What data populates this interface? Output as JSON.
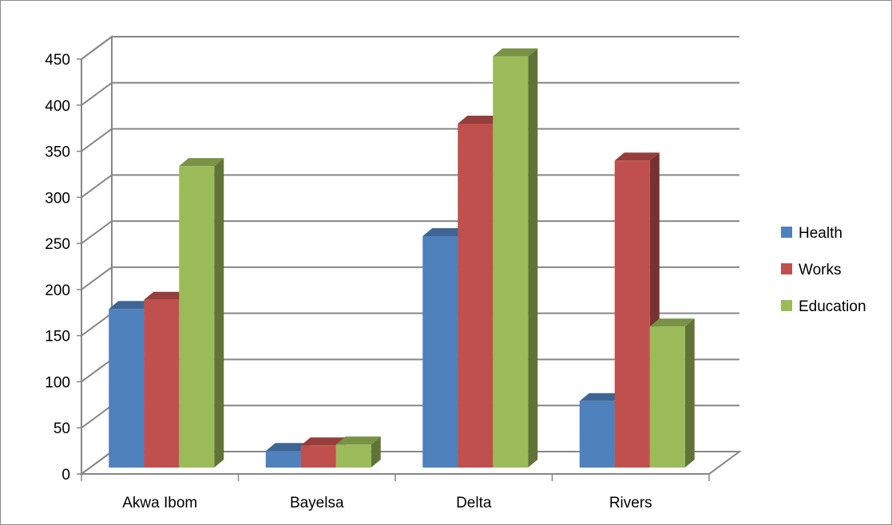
{
  "chart_data": {
    "type": "bar",
    "variant": "3d-clustered-column",
    "categories": [
      "Akwa Ibom",
      "Bayelsa",
      "Delta",
      "Rivers"
    ],
    "series": [
      {
        "name": "Health",
        "values": [
          172,
          18,
          251,
          72
        ],
        "color": "#4F81BD"
      },
      {
        "name": "Works",
        "values": [
          182,
          24,
          373,
          333
        ],
        "color": "#C0504D"
      },
      {
        "name": "Education",
        "values": [
          327,
          25,
          446,
          153
        ],
        "color": "#9BBB59"
      }
    ],
    "title": "",
    "xlabel": "",
    "ylabel": "",
    "ylim": [
      0,
      450
    ],
    "yticks": [
      0,
      50,
      100,
      150,
      200,
      250,
      300,
      350,
      400,
      450
    ],
    "grid": true,
    "legend_position": "right"
  }
}
